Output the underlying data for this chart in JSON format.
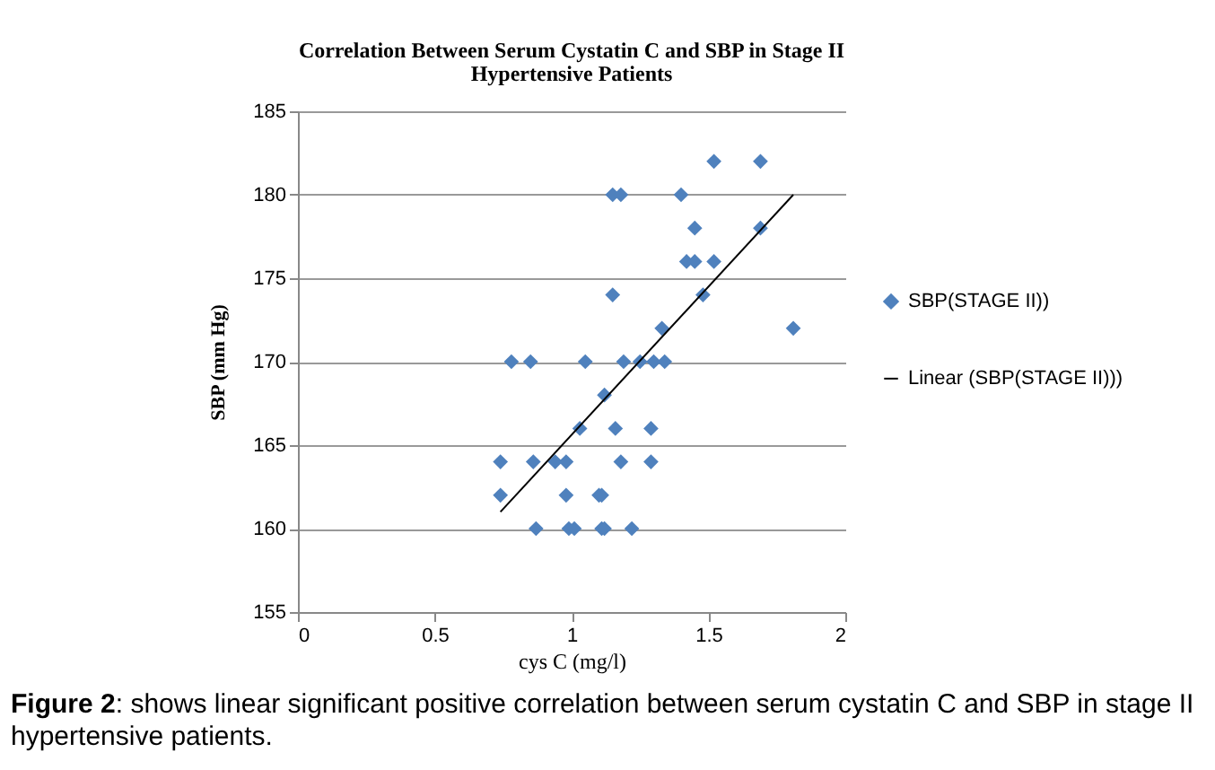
{
  "chart_data": {
    "type": "scatter",
    "title": "Correlation Between Serum Cystatin C and SBP in Stage II Hypertensive Patients",
    "xlabel": "cys C (mg/l)",
    "ylabel": "SBP (mm Hg)",
    "xlim": [
      0,
      2
    ],
    "xticks": [
      0,
      0.5,
      1,
      1.5,
      2
    ],
    "ylim": [
      155,
      185
    ],
    "yticks": [
      155,
      160,
      165,
      170,
      175,
      180,
      185
    ],
    "grid": "y",
    "legend": "right",
    "marker": "diamond",
    "series": [
      {
        "name": "SBP(STAGE II))",
        "color": "#4f81bd",
        "x": [
          1.15,
          1.18,
          1.15,
          0.78,
          0.85,
          1.05,
          1.19,
          1.25,
          1.12,
          1.03,
          1.16,
          0.74,
          0.86,
          0.94,
          0.98,
          1.18,
          0.74,
          0.98,
          1.1,
          1.11,
          0.87,
          0.99,
          1.01,
          1.11,
          1.12,
          1.22,
          1.52,
          1.69,
          1.4,
          1.45,
          1.69,
          1.42,
          1.45,
          1.52,
          1.48,
          1.33,
          1.81,
          1.3,
          1.34,
          1.29,
          1.29
        ],
        "values": [
          180,
          180,
          174,
          170,
          170,
          170,
          170,
          170,
          168,
          166,
          166,
          164,
          164,
          164,
          164,
          164,
          162,
          162,
          162,
          162,
          160,
          160,
          160,
          160,
          160,
          160,
          182,
          182,
          180,
          178,
          178,
          176,
          176,
          176,
          174,
          172,
          172,
          170,
          170,
          166,
          164
        ]
      },
      {
        "name": "Linear (SBP(STAGE II)))",
        "type": "line",
        "marker": "none",
        "color": "#000000",
        "x": [
          0.74,
          1.81
        ],
        "values": [
          161,
          180
        ]
      }
    ],
    "annotations": [
      "Figure 2: shows linear significant positive correlation between serum cystatin C and SBP in stage II hypertensive patients."
    ]
  }
}
